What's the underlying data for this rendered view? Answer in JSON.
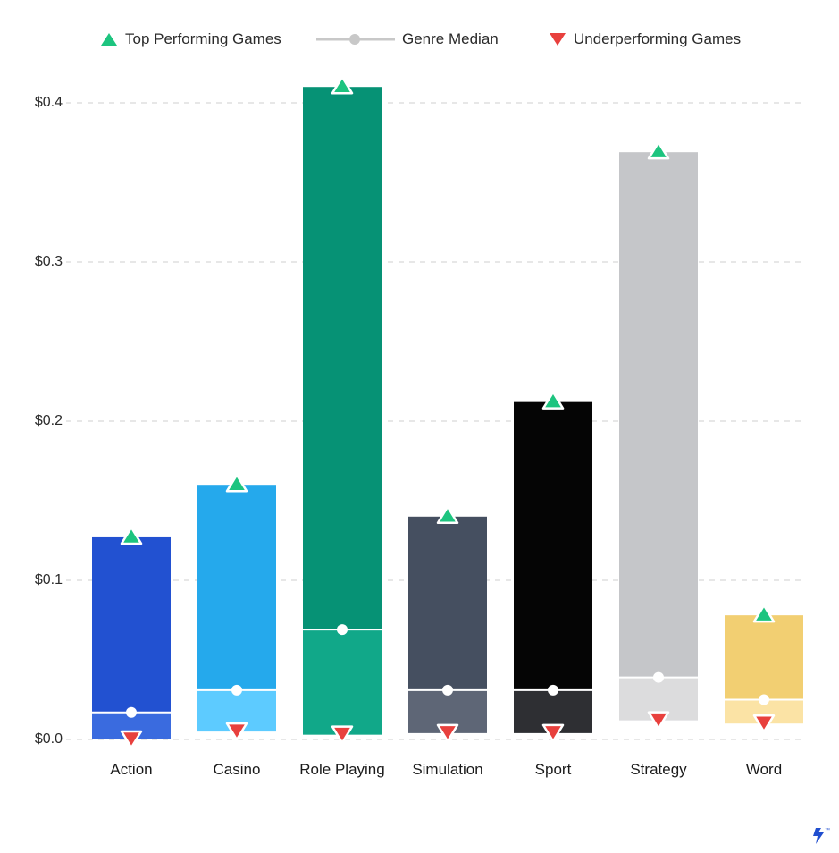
{
  "chart_data": {
    "type": "bar",
    "title": "",
    "xlabel": "",
    "ylabel": "",
    "ylim": [
      0,
      0.4
    ],
    "y_ticks": [
      "$0.0",
      "$0.1",
      "$0.2",
      "$0.3",
      "$0.4"
    ],
    "y_tick_values": [
      0,
      0.1,
      0.2,
      0.3,
      0.4
    ],
    "grid": true,
    "legend_position": "top",
    "legend": [
      {
        "name": "Top Performing Games",
        "marker": "triangle-up",
        "color": "#1dc47f"
      },
      {
        "name": "Genre Median",
        "marker": "line-dot",
        "color": "#c8c8c8"
      },
      {
        "name": "Underperforming Games",
        "marker": "triangle-down",
        "color": "#e8403d"
      }
    ],
    "categories": [
      "Action",
      "Casino",
      "Role Playing",
      "Simulation",
      "Sport",
      "Strategy",
      "Word"
    ],
    "series": [
      {
        "name": "Top Performing Games",
        "values": [
          0.127,
          0.16,
          0.41,
          0.14,
          0.212,
          0.369,
          0.078
        ]
      },
      {
        "name": "Genre Median",
        "values": [
          0.017,
          0.031,
          0.069,
          0.031,
          0.031,
          0.039,
          0.025
        ]
      },
      {
        "name": "Underperforming Games",
        "values": [
          0.0,
          0.005,
          0.003,
          0.004,
          0.004,
          0.012,
          0.01
        ]
      }
    ],
    "colors": {
      "upper": [
        "#2251d1",
        "#25a9ec",
        "#069275",
        "#454f60",
        "#050505",
        "#c5c6c9",
        "#f2cf72"
      ],
      "lower": [
        "#3a6bdf",
        "#5dcbff",
        "#11a889",
        "#5e6676",
        "#2e2f33",
        "#dcdcdd",
        "#fbe3a5"
      ]
    }
  },
  "brand": {
    "logo": "toptal-logo-icon"
  }
}
